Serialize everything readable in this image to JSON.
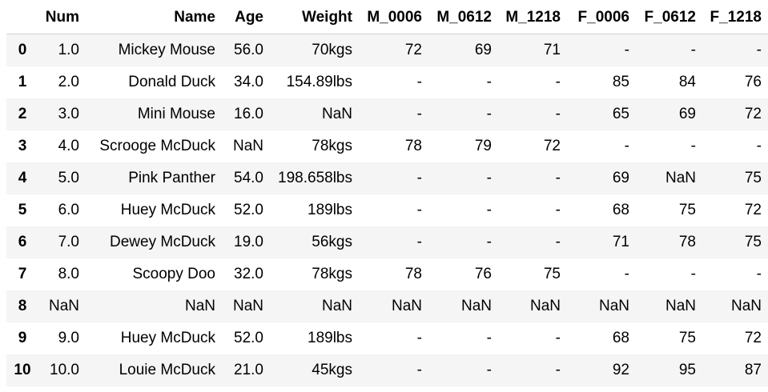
{
  "table": {
    "columns": [
      "",
      "Num",
      "Name",
      "Age",
      "Weight",
      "M_0006",
      "M_0612",
      "M_1218",
      "F_0006",
      "F_0612",
      "F_1218"
    ],
    "rows": [
      {
        "index": "0",
        "cells": [
          "1.0",
          "Mickey Mouse",
          "56.0",
          "70kgs",
          "72",
          "69",
          "71",
          "-",
          "-",
          "-"
        ]
      },
      {
        "index": "1",
        "cells": [
          "2.0",
          "Donald Duck",
          "34.0",
          "154.89lbs",
          "-",
          "-",
          "-",
          "85",
          "84",
          "76"
        ]
      },
      {
        "index": "2",
        "cells": [
          "3.0",
          "Mini Mouse",
          "16.0",
          "NaN",
          "-",
          "-",
          "-",
          "65",
          "69",
          "72"
        ]
      },
      {
        "index": "3",
        "cells": [
          "4.0",
          "Scrooge McDuck",
          "NaN",
          "78kgs",
          "78",
          "79",
          "72",
          "-",
          "-",
          "-"
        ]
      },
      {
        "index": "4",
        "cells": [
          "5.0",
          "Pink Panther",
          "54.0",
          "198.658lbs",
          "-",
          "-",
          "-",
          "69",
          "NaN",
          "75"
        ]
      },
      {
        "index": "5",
        "cells": [
          "6.0",
          "Huey McDuck",
          "52.0",
          "189lbs",
          "-",
          "-",
          "-",
          "68",
          "75",
          "72"
        ]
      },
      {
        "index": "6",
        "cells": [
          "7.0",
          "Dewey McDuck",
          "19.0",
          "56kgs",
          "-",
          "-",
          "-",
          "71",
          "78",
          "75"
        ]
      },
      {
        "index": "7",
        "cells": [
          "8.0",
          "Scoopy Doo",
          "32.0",
          "78kgs",
          "78",
          "76",
          "75",
          "-",
          "-",
          "-"
        ]
      },
      {
        "index": "8",
        "cells": [
          "NaN",
          "NaN",
          "NaN",
          "NaN",
          "NaN",
          "NaN",
          "NaN",
          "NaN",
          "NaN",
          "NaN"
        ]
      },
      {
        "index": "9",
        "cells": [
          "9.0",
          "Huey McDuck",
          "52.0",
          "189lbs",
          "-",
          "-",
          "-",
          "68",
          "75",
          "72"
        ]
      },
      {
        "index": "10",
        "cells": [
          "10.0",
          "Louie McDuck",
          "21.0",
          "45kgs",
          "-",
          "-",
          "-",
          "92",
          "95",
          "87"
        ]
      }
    ]
  },
  "colors": {
    "stripe": "#f5f5f5",
    "background": "#ffffff",
    "text": "#000000",
    "header_border": "#d0d0d0"
  }
}
